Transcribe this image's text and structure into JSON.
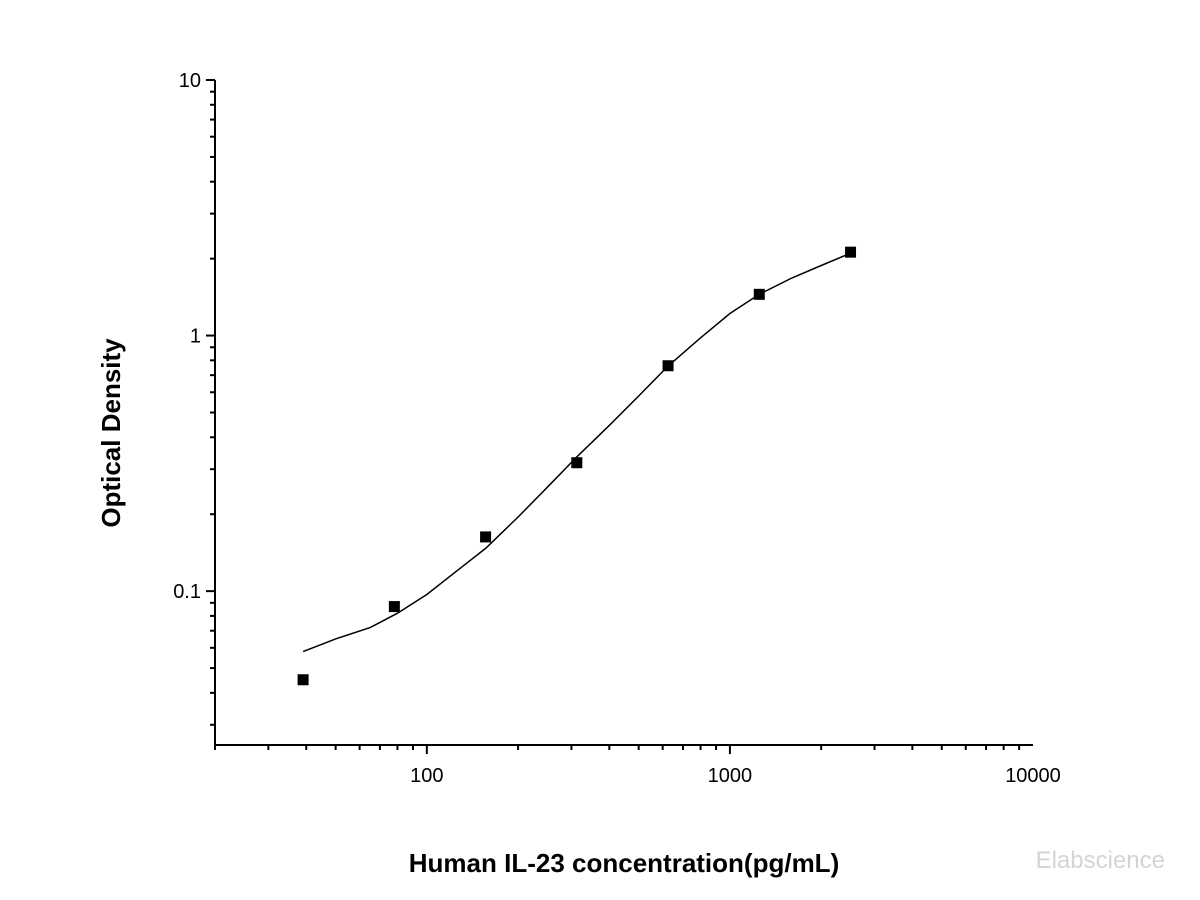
{
  "chart_data": {
    "type": "scatter",
    "title": "",
    "xlabel": "Human IL-23 concentration(pg/mL)",
    "ylabel": "Optical Density",
    "xscale": "log",
    "yscale": "log",
    "xlim": [
      20,
      10000
    ],
    "ylim": [
      0.025,
      10
    ],
    "x_ticks": [
      100,
      1000,
      10000
    ],
    "x_tick_labels": [
      "100",
      "1000",
      "10000"
    ],
    "y_ticks": [
      0.1,
      1,
      10
    ],
    "y_tick_labels": [
      "0.1",
      "1",
      "10"
    ],
    "grid": false,
    "legend": "none",
    "series": [
      {
        "marker": "square",
        "color": "#000000",
        "x": [
          39.06,
          78.13,
          156.25,
          312.5,
          625,
          1250,
          2500
        ],
        "y": [
          0.045,
          0.087,
          0.163,
          0.318,
          0.762,
          1.45,
          2.12
        ]
      }
    ],
    "fit_curve": {
      "type": "line",
      "color": "#000000",
      "x": [
        39.06,
        50,
        65,
        80,
        100,
        130,
        156.25,
        200,
        250,
        312.5,
        400,
        500,
        625,
        800,
        1000,
        1250,
        1600,
        2000,
        2500
      ],
      "y": [
        0.058,
        0.065,
        0.072,
        0.082,
        0.097,
        0.124,
        0.147,
        0.195,
        0.255,
        0.335,
        0.445,
        0.58,
        0.76,
        0.98,
        1.22,
        1.45,
        1.68,
        1.88,
        2.1
      ]
    }
  },
  "watermark": "Elabscience"
}
